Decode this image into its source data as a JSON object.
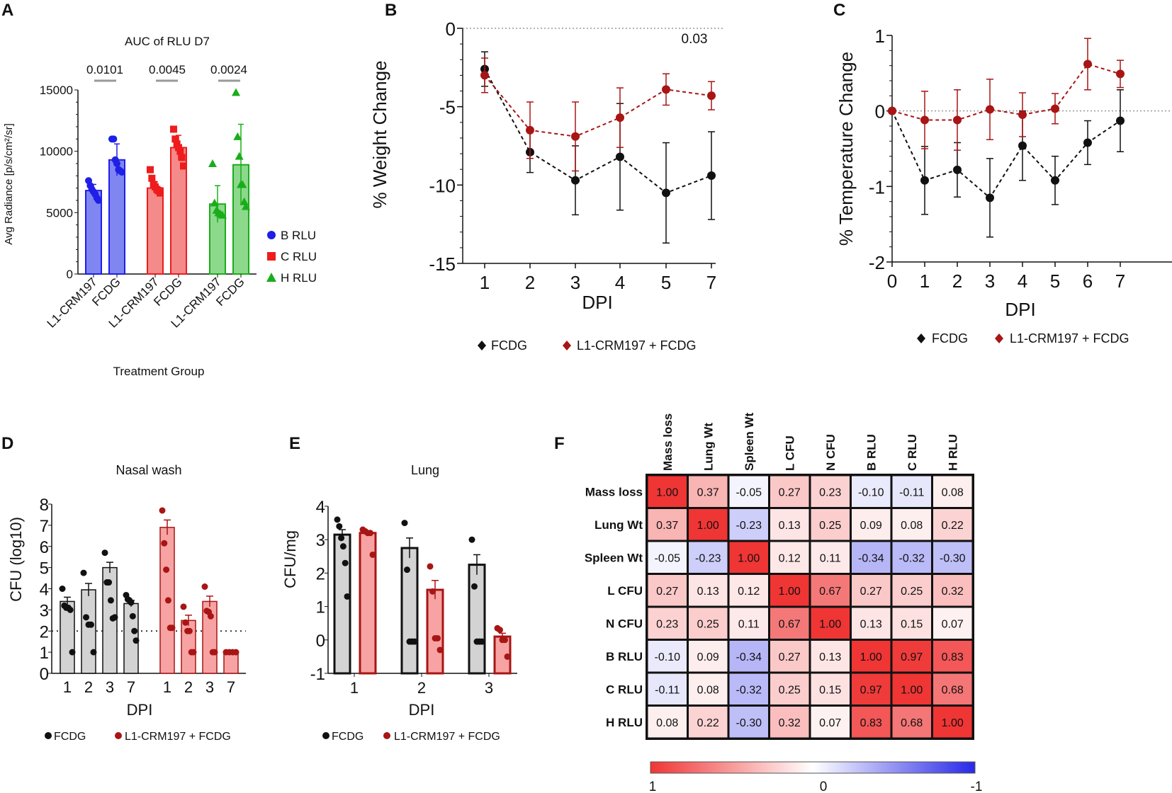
{
  "figure": {
    "panel_letters": [
      "A",
      "B",
      "C",
      "D",
      "E",
      "F"
    ]
  },
  "colors": {
    "blue": "#1f1fe6",
    "blue_fill": "#7f86f2",
    "red": "#ee1c1c",
    "red_fill": "#f58a8a",
    "green": "#1aad1a",
    "green_fill": "#8cd98c",
    "black": "#111111",
    "darkred": "#a81515",
    "grey_fill": "#d3d3d3",
    "pink_fill": "#f7a3a3"
  },
  "chart_data": [
    {
      "id": "A",
      "type": "bar",
      "title": "AUC of RLU D7",
      "xlabel": "Treatment Group",
      "ylabel": "Avg Radiance [p/s/cm²/sr]",
      "ylim": [
        0,
        15000
      ],
      "yticks": [
        0,
        5000,
        10000,
        15000
      ],
      "categories": [
        "L1-CRM197",
        "FCDG",
        "L1-CRM197",
        "FCDG",
        "L1-CRM197",
        "FCDG"
      ],
      "legend": [
        "B RLU",
        "C RLU",
        "H RLU"
      ],
      "legend_position": "right",
      "pvalues": [
        "0.0101",
        "0.0045",
        "0.0024"
      ],
      "groups": [
        {
          "name": "B RLU",
          "marker": "circle",
          "values": [
            6800,
            9300
          ],
          "errors": [
            500,
            1300
          ],
          "points": [
            [
              7600,
              7200,
              6900,
              6700,
              6500,
              6200,
              6000
            ],
            [
              11000,
              11000,
              9300,
              9000,
              8500,
              8400,
              8300
            ]
          ]
        },
        {
          "name": "C RLU",
          "marker": "square",
          "values": [
            7000,
            10300
          ],
          "errors": [
            500,
            1000
          ],
          "points": [
            [
              8500,
              7800,
              7300,
              7100,
              6900,
              6800,
              6600
            ],
            [
              11800,
              11000,
              10600,
              10300,
              10000,
              9500,
              8800
            ]
          ]
        },
        {
          "name": "H RLU",
          "marker": "triangle",
          "values": [
            5700,
            8900
          ],
          "errors": [
            1500,
            3300
          ],
          "points": [
            [
              9000,
              5800,
              5200,
              5000,
              4900,
              4800
            ],
            [
              14800,
              11200,
              9600,
              7300,
              7300,
              5900,
              5500
            ]
          ]
        }
      ]
    },
    {
      "id": "B",
      "type": "line",
      "xlabel": "DPI",
      "ylabel": "% Weight Change",
      "x": [
        1,
        2,
        3,
        4,
        5,
        7
      ],
      "ylim": [
        -15,
        0
      ],
      "yticks": [
        0,
        -5,
        -10,
        -15
      ],
      "annotation": "0.03",
      "legend_position": "bottom",
      "series": [
        {
          "name": "FCDG",
          "values": [
            -2.6,
            -7.9,
            -9.7,
            -8.2,
            -10.5,
            -9.4
          ],
          "errors": [
            1.1,
            1.3,
            2.2,
            3.4,
            3.2,
            2.8
          ]
        },
        {
          "name": "L1-CRM197 + FCDG",
          "values": [
            -3.0,
            -6.5,
            -6.9,
            -5.7,
            -3.9,
            -4.3
          ],
          "errors": [
            1.1,
            1.8,
            2.2,
            1.9,
            1.0,
            0.9
          ]
        }
      ]
    },
    {
      "id": "C",
      "type": "line",
      "xlabel": "DPI",
      "ylabel": "% Temperature Change",
      "x": [
        0,
        1,
        2,
        3,
        4,
        5,
        6,
        7
      ],
      "ylim": [
        -2,
        1
      ],
      "yticks": [
        1,
        0,
        -1,
        -2
      ],
      "legend_position": "bottom",
      "series": [
        {
          "name": "FCDG",
          "values": [
            0,
            -0.92,
            -0.78,
            -1.15,
            -0.46,
            -0.92,
            -0.42,
            -0.13
          ],
          "errors": [
            0,
            0.45,
            0.36,
            0.52,
            0.46,
            0.32,
            0.29,
            0.41
          ]
        },
        {
          "name": "L1-CRM197 + FCDG",
          "values": [
            0,
            -0.12,
            -0.12,
            0.02,
            -0.05,
            0.03,
            0.62,
            0.49
          ],
          "errors": [
            0,
            0.38,
            0.4,
            0.4,
            0.29,
            0.2,
            0.34,
            0.18
          ]
        }
      ]
    },
    {
      "id": "D",
      "type": "bar",
      "title": "Nasal wash",
      "xlabel": "DPI",
      "ylabel": "CFU (log10)",
      "ylim": [
        0,
        8
      ],
      "yticks": [
        0,
        1,
        2,
        3,
        4,
        5,
        6,
        7,
        8
      ],
      "threshold": 2,
      "legend_position": "bottom",
      "series": [
        {
          "name": "FCDG",
          "categories": [
            "1",
            "2",
            "3",
            "7"
          ],
          "values": [
            3.4,
            3.95,
            5.0,
            3.3
          ],
          "errors": [
            0.2,
            0.3,
            0.25,
            0.15
          ],
          "points": [
            [
              4.0,
              3.2,
              3.1,
              3.1,
              3.0,
              1.0
            ],
            [
              4.75,
              2.65,
              2.3,
              2.3,
              1.0
            ],
            [
              5.7,
              4.3,
              4.3,
              3.45,
              2.6,
              2.65
            ],
            [
              3.7,
              3.5,
              3.45,
              3.35,
              2.7,
              2.0,
              1.55
            ]
          ]
        },
        {
          "name": "L1-CRM197 + FCDG",
          "categories": [
            "1",
            "2",
            "3",
            "7"
          ],
          "values": [
            6.9,
            2.5,
            3.4,
            1.0
          ],
          "errors": [
            0.35,
            0.25,
            0.25,
            0.02
          ],
          "points": [
            [
              7.7,
              6.15,
              4.9,
              3.45,
              2.15,
              2.15
            ],
            [
              3.15,
              2.4,
              2.0,
              2.0,
              1.0,
              1.0
            ],
            [
              4.1,
              2.95,
              2.9,
              2.7,
              1.0,
              1.0
            ],
            [
              1.0,
              1.0,
              1.0,
              1.0
            ]
          ]
        }
      ]
    },
    {
      "id": "E",
      "type": "bar",
      "title": "Lung",
      "xlabel": "DPI",
      "ylabel": "CFU/mg",
      "ylim": [
        -1,
        4
      ],
      "yticks": [
        -1,
        0,
        1,
        2,
        3,
        4
      ],
      "categories": [
        "1",
        "2",
        "3"
      ],
      "legend_position": "bottom",
      "series": [
        {
          "name": "FCDG",
          "values": [
            3.15,
            2.75,
            2.25
          ],
          "errors": [
            0.15,
            0.3,
            0.3
          ],
          "points": [
            [
              3.6,
              3.4,
              3.05,
              2.8,
              2.3,
              1.3
            ],
            [
              3.5,
              2.1,
              -0.05,
              -0.05,
              -0.05
            ],
            [
              3.0,
              1.6,
              -0.05,
              -0.05,
              -0.05
            ]
          ]
        },
        {
          "name": "L1-CRM197 + FCDG",
          "values": [
            3.2,
            1.5,
            0.1
          ],
          "errors": [
            0.05,
            0.28,
            0.1
          ],
          "points": [
            [
              3.3,
              3.25,
              3.2,
              3.2,
              2.55
            ],
            [
              2.2,
              1.45,
              0.05,
              0.05,
              -0.3
            ],
            [
              0.35,
              0.3,
              0.0,
              0.0,
              -0.5
            ]
          ]
        }
      ]
    },
    {
      "id": "F",
      "type": "heatmap",
      "labels": [
        "Mass loss",
        "Lung Wt",
        "Spleen Wt",
        "L CFU",
        "N CFU",
        "B RLU",
        "C RLU",
        "H RLU"
      ],
      "matrix": [
        [
          1.0,
          0.37,
          -0.05,
          0.27,
          0.23,
          -0.1,
          -0.11,
          0.08
        ],
        [
          0.37,
          1.0,
          -0.23,
          0.13,
          0.25,
          0.09,
          0.08,
          0.22
        ],
        [
          -0.05,
          -0.23,
          1.0,
          0.12,
          0.11,
          -0.34,
          -0.32,
          -0.3
        ],
        [
          0.27,
          0.13,
          0.12,
          1.0,
          0.67,
          0.27,
          0.25,
          0.32
        ],
        [
          0.23,
          0.25,
          0.11,
          0.67,
          1.0,
          0.13,
          0.15,
          0.07
        ],
        [
          -0.1,
          0.09,
          -0.34,
          0.27,
          0.13,
          1.0,
          0.97,
          0.83
        ],
        [
          -0.11,
          0.08,
          -0.32,
          0.25,
          0.15,
          0.97,
          1.0,
          0.68
        ],
        [
          0.08,
          0.22,
          -0.3,
          0.32,
          0.07,
          0.83,
          0.68,
          1.0
        ]
      ],
      "colorbar": {
        "min": -1,
        "max": 1,
        "tick_labels": [
          "1",
          "0",
          "-1"
        ],
        "position": "bottom"
      }
    }
  ]
}
